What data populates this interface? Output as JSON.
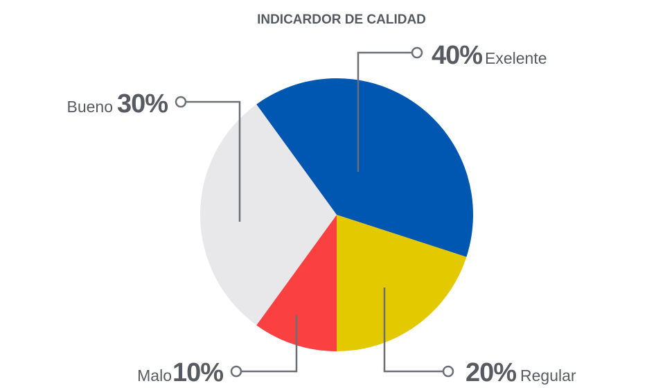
{
  "chart_data": {
    "type": "pie",
    "title": "INDICARDOR DE CALIDAD",
    "slices": [
      {
        "label": "Exelente",
        "value": 40,
        "value_label": "40%",
        "color": "#0057b1"
      },
      {
        "label": "Regular",
        "value": 20,
        "value_label": "20%",
        "color": "#e2c900"
      },
      {
        "label": "Malo",
        "value": 10,
        "value_label": "10%",
        "color": "#fa4040"
      },
      {
        "label": "Bueno",
        "value": 30,
        "value_label": "30%",
        "color": "#e8e8eb"
      }
    ],
    "start_angle_deg": -36,
    "direction": "clockwise",
    "legend": "none"
  }
}
